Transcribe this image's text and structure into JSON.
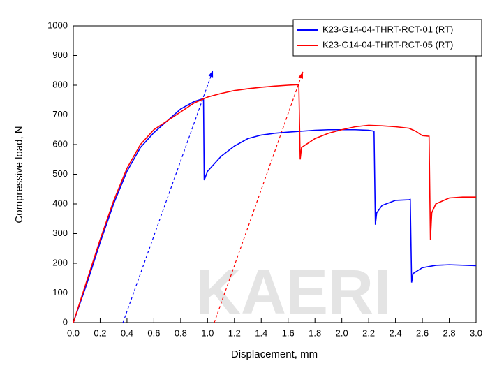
{
  "chart_data": {
    "type": "line",
    "x_label": "Displacement, mm",
    "y_label": "Compressive load, N",
    "watermark": "KAERI",
    "xlim": [
      0,
      3
    ],
    "ylim": [
      0,
      1000
    ],
    "xticks": [
      {
        "value": 0,
        "label": "0.0"
      },
      0.2,
      0.4,
      0.6,
      0.8,
      {
        "value": 1,
        "label": "1.0"
      },
      1.2,
      1.4,
      1.6,
      1.8,
      {
        "value": 2,
        "label": "2.0"
      },
      2.2,
      2.4,
      2.6,
      2.8,
      {
        "value": 3,
        "label": "3.0"
      }
    ],
    "yticks": [
      0,
      100,
      200,
      300,
      400,
      500,
      600,
      700,
      800,
      900,
      1000
    ],
    "legend": "top-right",
    "series": [
      {
        "name": "K23-G14-04-THRT-RCT-01 (RT)",
        "color": "#0000ff",
        "x": [
          0,
          0.1,
          0.2,
          0.3,
          0.4,
          0.5,
          0.6,
          0.7,
          0.8,
          0.9,
          0.97,
          0.975,
          1.0,
          1.1,
          1.2,
          1.3,
          1.4,
          1.5,
          1.6,
          1.7,
          1.8,
          1.9,
          2.0,
          2.1,
          2.2,
          2.24,
          2.25,
          2.26,
          2.3,
          2.4,
          2.5,
          2.51,
          2.52,
          2.53,
          2.6,
          2.7,
          2.8,
          3.0
        ],
        "values": [
          0,
          130,
          270,
          400,
          510,
          590,
          640,
          680,
          720,
          745,
          755,
          480,
          510,
          560,
          595,
          620,
          632,
          638,
          642,
          645,
          648,
          650,
          650,
          650,
          648,
          645,
          330,
          370,
          395,
          412,
          414,
          415,
          135,
          165,
          185,
          193,
          195,
          192
        ]
      },
      {
        "name": "K23-G14-04-THRT-RCT-05 (RT)",
        "color": "#ff0000",
        "x": [
          0,
          0.1,
          0.2,
          0.3,
          0.4,
          0.5,
          0.6,
          0.7,
          0.8,
          0.9,
          1.0,
          1.1,
          1.2,
          1.3,
          1.4,
          1.5,
          1.6,
          1.68,
          1.69,
          1.7,
          1.8,
          1.9,
          2.0,
          2.1,
          2.2,
          2.3,
          2.4,
          2.5,
          2.55,
          2.6,
          2.65,
          2.66,
          2.67,
          2.7,
          2.8,
          2.9,
          3.0
        ],
        "values": [
          0,
          140,
          280,
          410,
          520,
          600,
          650,
          680,
          710,
          740,
          760,
          772,
          782,
          788,
          793,
          797,
          800,
          802,
          550,
          590,
          620,
          638,
          650,
          660,
          665,
          663,
          660,
          655,
          645,
          630,
          628,
          280,
          370,
          400,
          420,
          423,
          423
        ]
      }
    ],
    "reference_lines": [
      {
        "color": "#0000ff",
        "x": [
          0.37,
          1.04
        ],
        "values": [
          0,
          850
        ]
      },
      {
        "color": "#ff0000",
        "x": [
          1.05,
          1.71
        ],
        "values": [
          0,
          845
        ]
      }
    ]
  }
}
